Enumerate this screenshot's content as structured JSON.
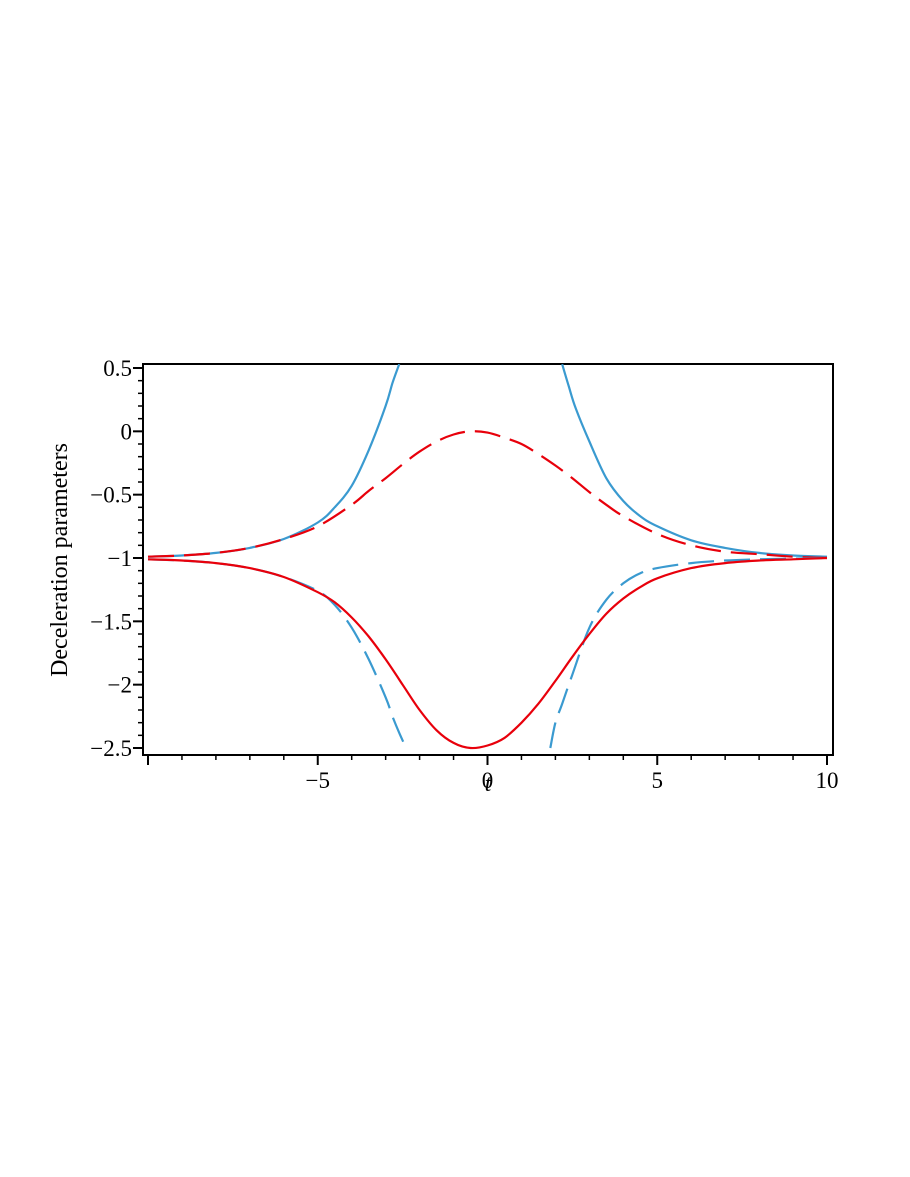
{
  "chart_data": {
    "type": "line",
    "title": "",
    "xlabel": "t",
    "ylabel": "Deceleration parameters",
    "xlim": [
      -10,
      10
    ],
    "ylim": [
      -2.55,
      0.55
    ],
    "xticks": [
      -5,
      0,
      5,
      10
    ],
    "xtick_labels": [
      "−5",
      "0",
      "5",
      "10"
    ],
    "yticks": [
      0.5,
      0,
      -0.5,
      -1,
      -1.5,
      -2,
      -2.5
    ],
    "ytick_labels": [
      "0.5",
      "0",
      "−0.5",
      "−1",
      "−1.5",
      "−2",
      "−2.5"
    ],
    "grid": false,
    "legend": "none",
    "series": [
      {
        "color": "#3A9AD0",
        "style": "solid",
        "x": [
          -10,
          -9,
          -8,
          -7,
          -6,
          -5,
          -4.5,
          -4,
          -3.5,
          -3,
          -2.8,
          -2.6,
          2.2,
          2.4,
          2.6,
          3,
          3.5,
          4,
          4.5,
          5,
          6,
          7,
          8,
          9,
          10
        ],
        "y": [
          -0.99,
          -0.98,
          -0.96,
          -0.92,
          -0.85,
          -0.72,
          -0.6,
          -0.43,
          -0.15,
          0.2,
          0.38,
          0.53,
          0.53,
          0.35,
          0.18,
          -0.08,
          -0.37,
          -0.55,
          -0.67,
          -0.75,
          -0.86,
          -0.92,
          -0.96,
          -0.98,
          -0.99
        ]
      },
      {
        "color": "#E8000B",
        "style": "dashed",
        "x": [
          -10,
          -9,
          -8,
          -7,
          -6,
          -5,
          -4,
          -3.5,
          -3,
          -2.5,
          -2,
          -1.5,
          -1,
          -0.5,
          0,
          0.5,
          1,
          1.5,
          2,
          2.5,
          3,
          3.5,
          4,
          5,
          6,
          7,
          8,
          9,
          10
        ],
        "y": [
          -0.99,
          -0.98,
          -0.96,
          -0.92,
          -0.85,
          -0.75,
          -0.58,
          -0.47,
          -0.37,
          -0.26,
          -0.16,
          -0.08,
          -0.025,
          0,
          -0.01,
          -0.05,
          -0.1,
          -0.18,
          -0.27,
          -0.37,
          -0.48,
          -0.58,
          -0.67,
          -0.81,
          -0.9,
          -0.95,
          -0.97,
          -0.99,
          -1
        ]
      },
      {
        "color": "#000000",
        "style": "solid",
        "x": [
          -10,
          10
        ],
        "y": [
          -1,
          -1
        ]
      },
      {
        "color": "#3A9AD0",
        "style": "dashed",
        "x": [
          -10,
          -9,
          -8,
          -7,
          -6,
          -5,
          -4.5,
          -4,
          -3.5,
          -3,
          -2.8,
          -2.6,
          -2.45,
          1.85,
          2,
          2.2,
          2.5,
          3,
          3.5,
          4,
          4.5,
          5,
          6,
          7,
          8,
          9,
          10
        ],
        "y": [
          -1.01,
          -1.02,
          -1.04,
          -1.08,
          -1.15,
          -1.26,
          -1.37,
          -1.55,
          -1.8,
          -2.1,
          -2.25,
          -2.38,
          -2.47,
          -2.5,
          -2.3,
          -2.15,
          -1.92,
          -1.55,
          -1.33,
          -1.2,
          -1.12,
          -1.08,
          -1.04,
          -1.02,
          -1.01,
          -1.005,
          -1
        ]
      },
      {
        "color": "#E8000B",
        "style": "solid",
        "x": [
          -10,
          -9,
          -8,
          -7,
          -6,
          -5,
          -4.5,
          -4,
          -3.5,
          -3,
          -2.5,
          -2,
          -1.5,
          -1,
          -0.5,
          0,
          0.5,
          1,
          1.5,
          2,
          2.5,
          3,
          3.5,
          4,
          4.5,
          5,
          6,
          7,
          8,
          9,
          10
        ],
        "y": [
          -1.01,
          -1.02,
          -1.04,
          -1.08,
          -1.15,
          -1.27,
          -1.35,
          -1.47,
          -1.62,
          -1.8,
          -2.0,
          -2.2,
          -2.36,
          -2.46,
          -2.5,
          -2.48,
          -2.42,
          -2.3,
          -2.15,
          -1.97,
          -1.78,
          -1.6,
          -1.44,
          -1.32,
          -1.23,
          -1.16,
          -1.08,
          -1.04,
          -1.02,
          -1.01,
          -1
        ]
      }
    ]
  }
}
